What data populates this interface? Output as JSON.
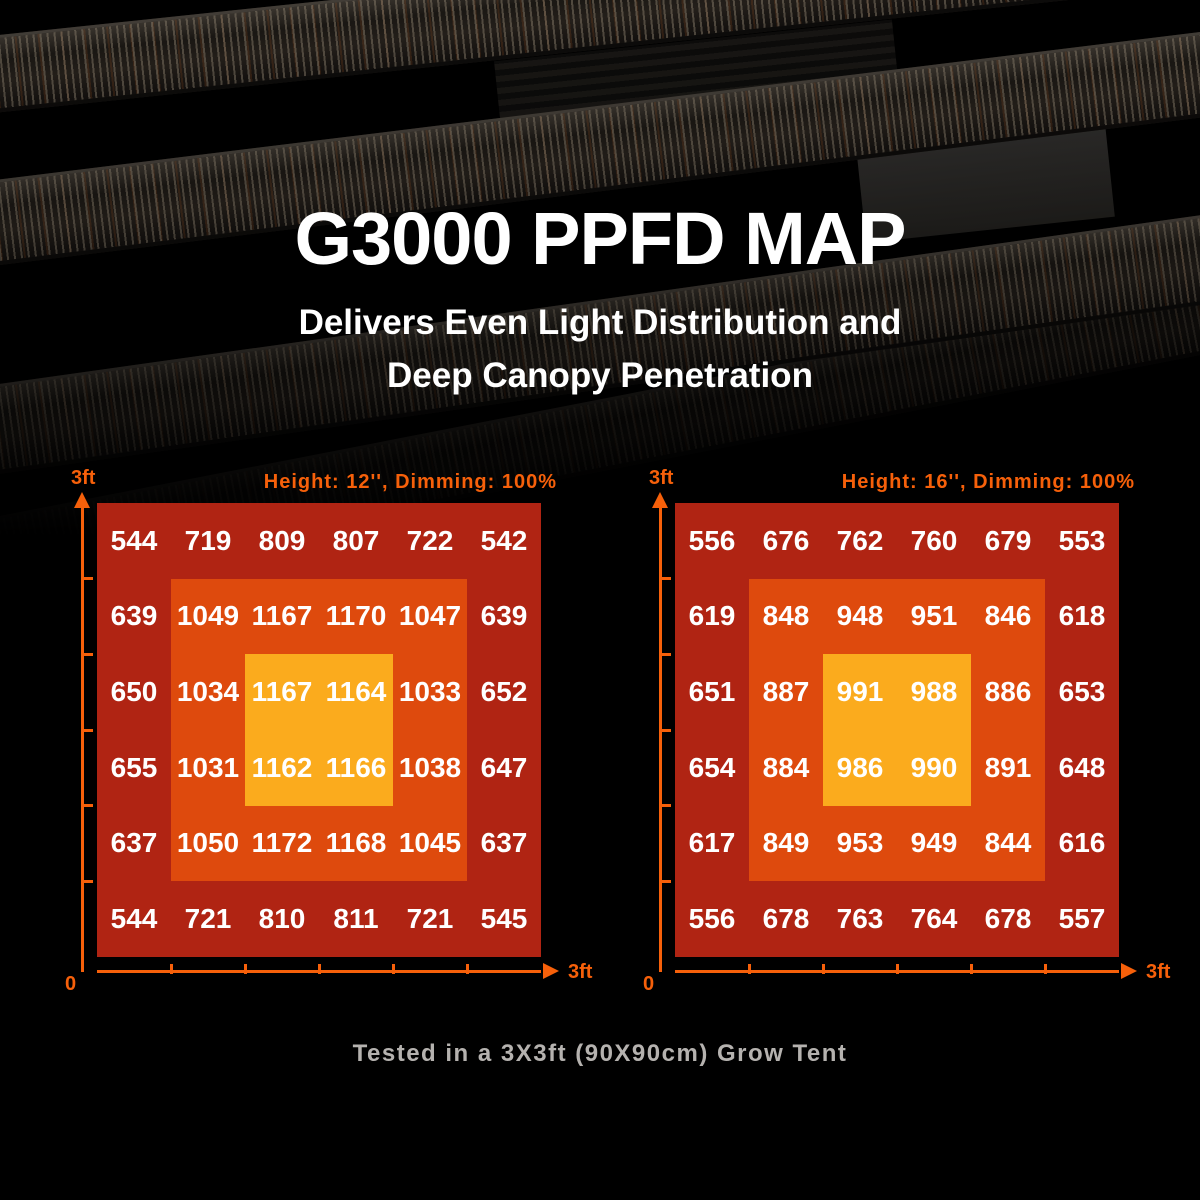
{
  "title": "G3000 PPFD MAP",
  "subtitle": [
    "Delivers Even Light Distribution and",
    "Deep Canopy Penetration"
  ],
  "footer_note": "Tested in a 3X3ft (90X90cm) Grow Tent",
  "axes": {
    "y_max_label": "3ft",
    "x_max_label": "3ft",
    "origin_label": "0"
  },
  "colors": {
    "accent_orange": "#f6600a",
    "heat_low": "#b02413",
    "heat_mid": "#de4a0d",
    "heat_high": "#fbab1d",
    "value_text": "#ffffff",
    "background": "#000000"
  },
  "chart_data": [
    {
      "type": "heatmap",
      "title": "Height: 12'', Dimming: 100%",
      "x_range": [
        "0",
        "3ft"
      ],
      "y_range": [
        "0",
        "3ft"
      ],
      "grid_size": "6x6",
      "rows": [
        [
          544,
          719,
          809,
          807,
          722,
          542
        ],
        [
          639,
          1049,
          1167,
          1170,
          1047,
          639
        ],
        [
          650,
          1034,
          1167,
          1164,
          1033,
          652
        ],
        [
          655,
          1031,
          1162,
          1166,
          1038,
          647
        ],
        [
          637,
          1050,
          1172,
          1168,
          1045,
          637
        ],
        [
          544,
          721,
          810,
          811,
          721,
          545
        ]
      ]
    },
    {
      "type": "heatmap",
      "title": "Height: 16'', Dimming: 100%",
      "x_range": [
        "0",
        "3ft"
      ],
      "y_range": [
        "0",
        "3ft"
      ],
      "grid_size": "6x6",
      "rows": [
        [
          556,
          676,
          762,
          760,
          679,
          553
        ],
        [
          619,
          848,
          948,
          951,
          846,
          618
        ],
        [
          651,
          887,
          991,
          988,
          886,
          653
        ],
        [
          654,
          884,
          986,
          990,
          891,
          648
        ],
        [
          617,
          849,
          953,
          949,
          844,
          616
        ],
        [
          556,
          678,
          763,
          764,
          678,
          557
        ]
      ]
    }
  ]
}
